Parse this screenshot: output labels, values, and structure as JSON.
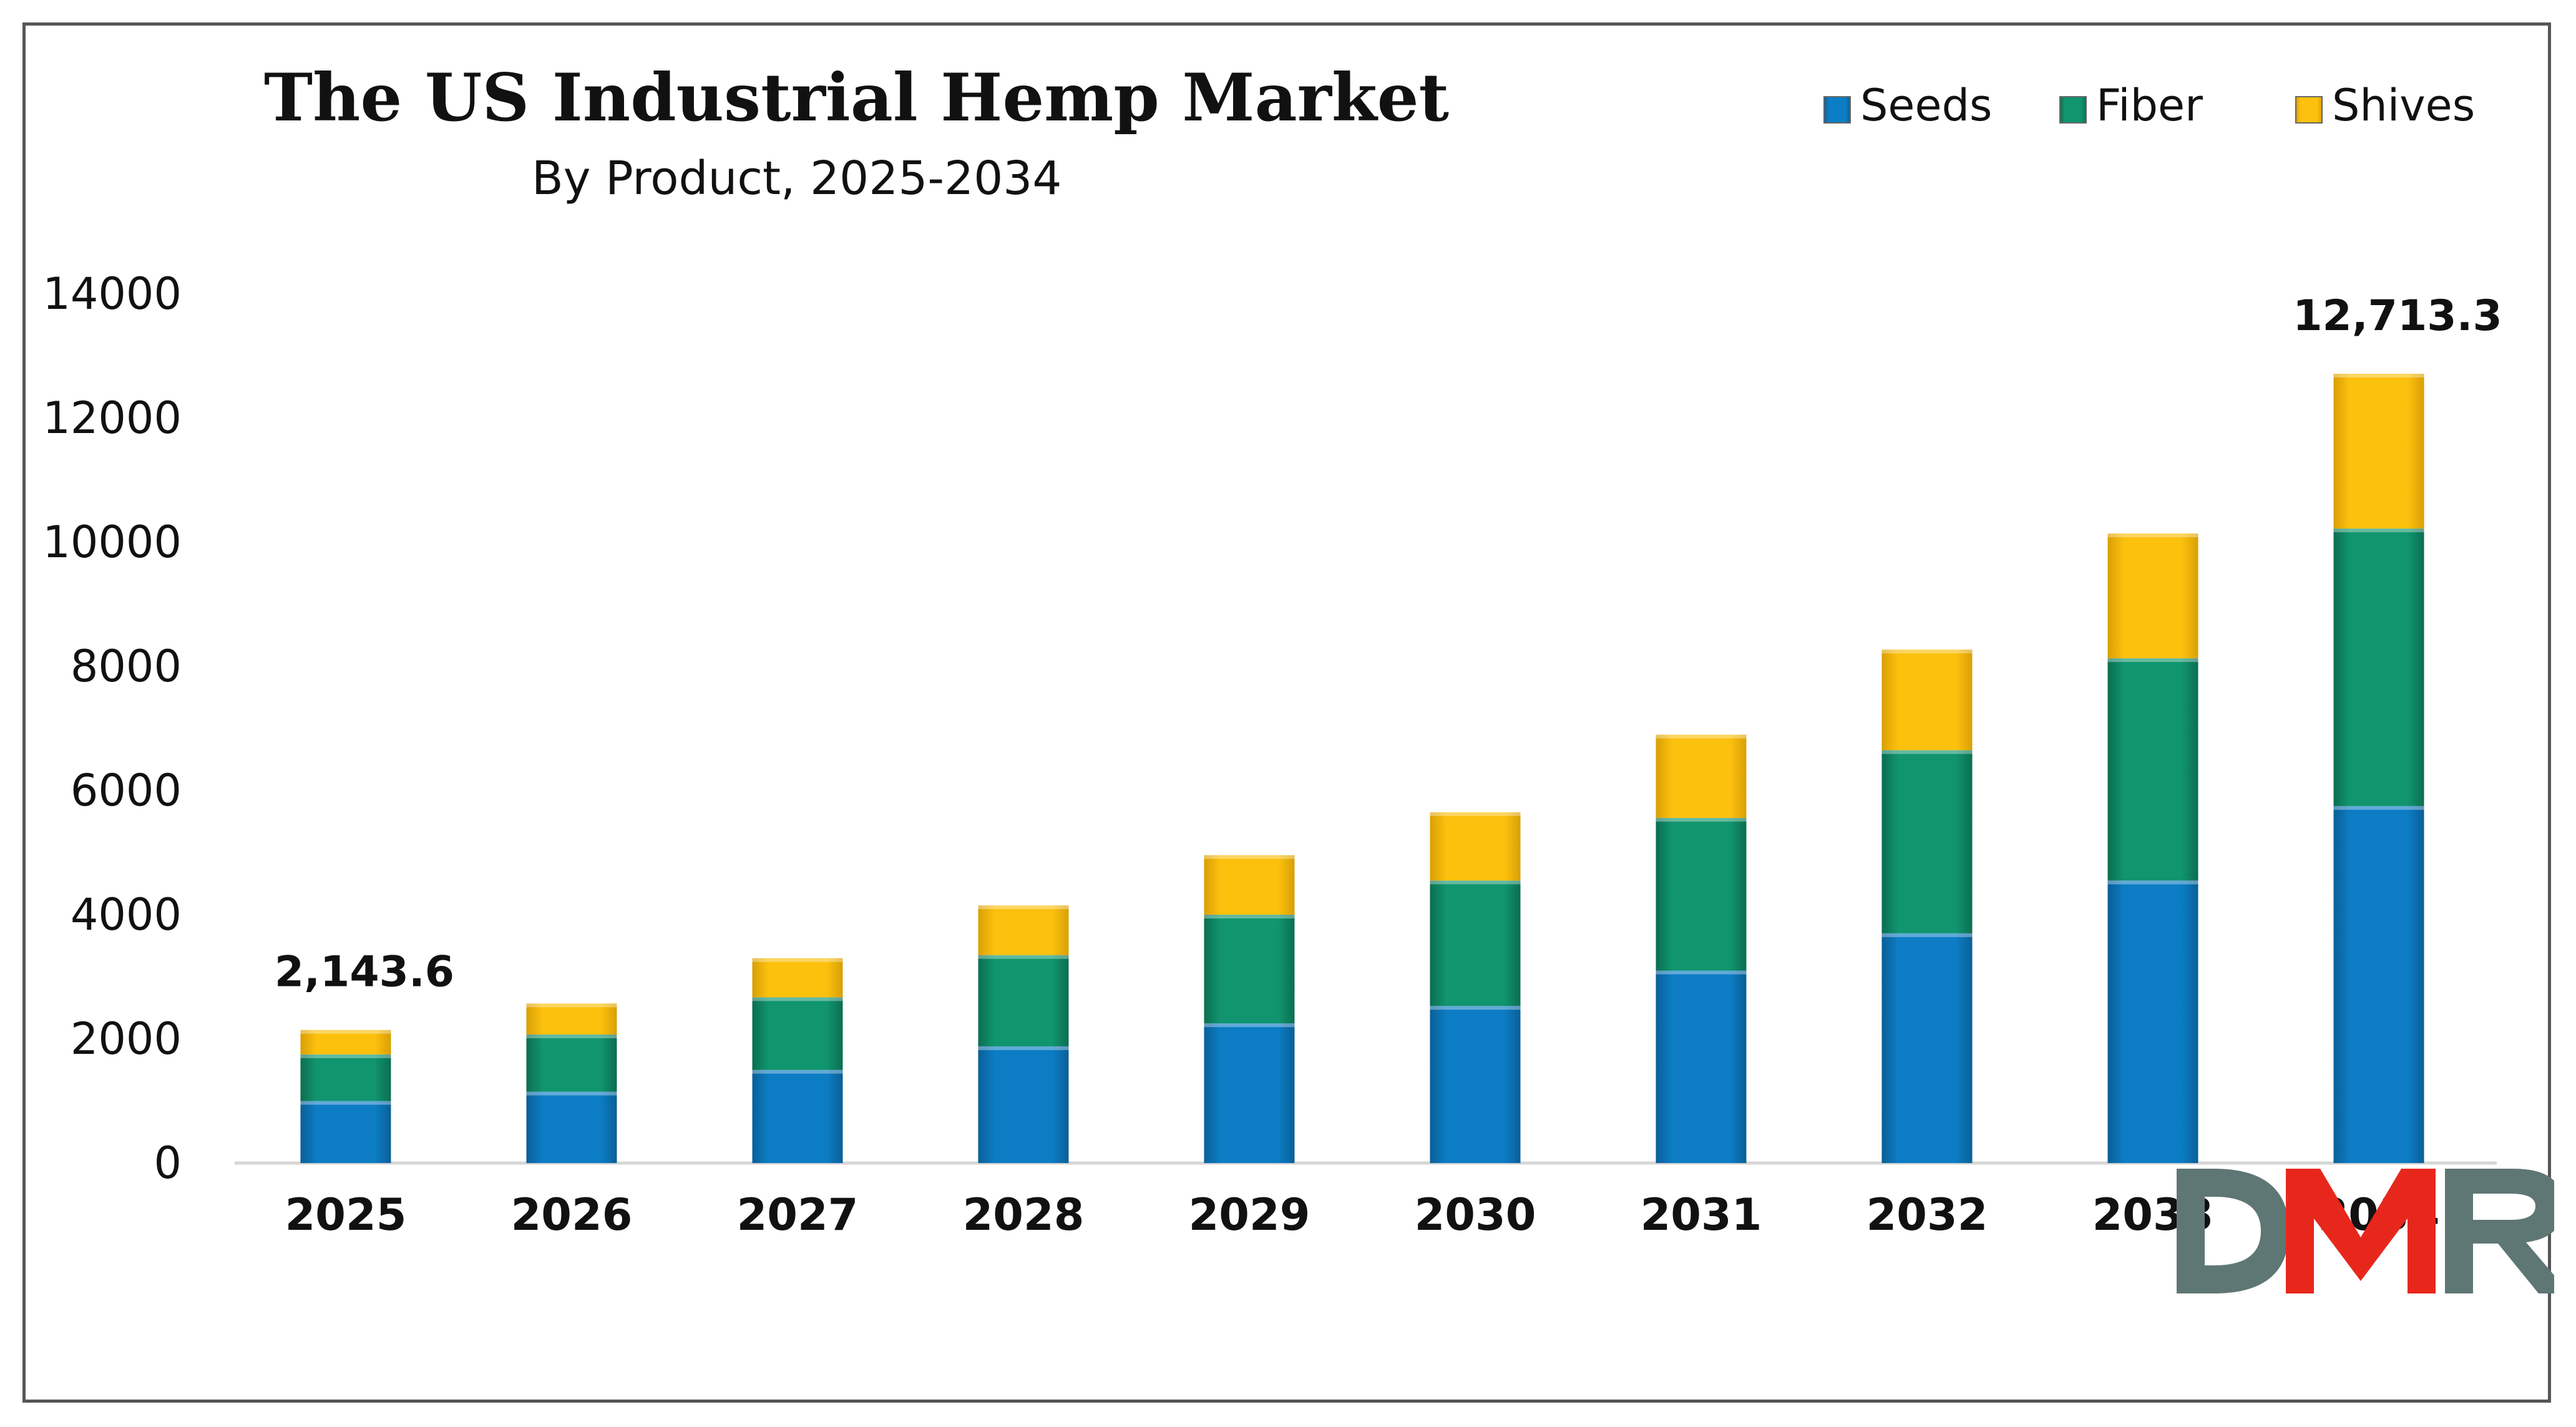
{
  "chart_data": {
    "type": "bar",
    "stacked": true,
    "title": "The US Industrial Hemp Market",
    "subtitle": "By Product, 2025-2034",
    "categories": [
      "2025",
      "2026",
      "2027",
      "2028",
      "2029",
      "2030",
      "2031",
      "2032",
      "2033",
      "2034"
    ],
    "series": [
      {
        "name": "Seeds",
        "color": "#0c7dc4",
        "values": [
          1000,
          1150,
          1500,
          1880,
          2250,
          2530,
          3100,
          3700,
          4550,
          5750
        ]
      },
      {
        "name": "Fiber",
        "color": "#10956e",
        "values": [
          750,
          920,
          1170,
          1470,
          1750,
          2020,
          2460,
          2950,
          3580,
          4470
        ]
      },
      {
        "name": "Shives",
        "color": "#fcc10d",
        "values": [
          393.6,
          500,
          630,
          800,
          960,
          1100,
          1340,
          1620,
          2010,
          2493.3
        ]
      }
    ],
    "totals_labels": {
      "2025": "2,143.6",
      "2034": "12,713.3"
    },
    "yticks": [
      "0",
      "2000",
      "4000",
      "6000",
      "8000",
      "10000",
      "12000",
      "14000"
    ],
    "ylim": [
      0,
      14000
    ],
    "xlabel": "",
    "ylabel": "",
    "legend_position": "top-right",
    "grid": false
  },
  "watermark": {
    "text": "DMR",
    "colors": {
      "d": "#5f7774",
      "m": "#e8271c",
      "r": "#5f7774"
    }
  }
}
